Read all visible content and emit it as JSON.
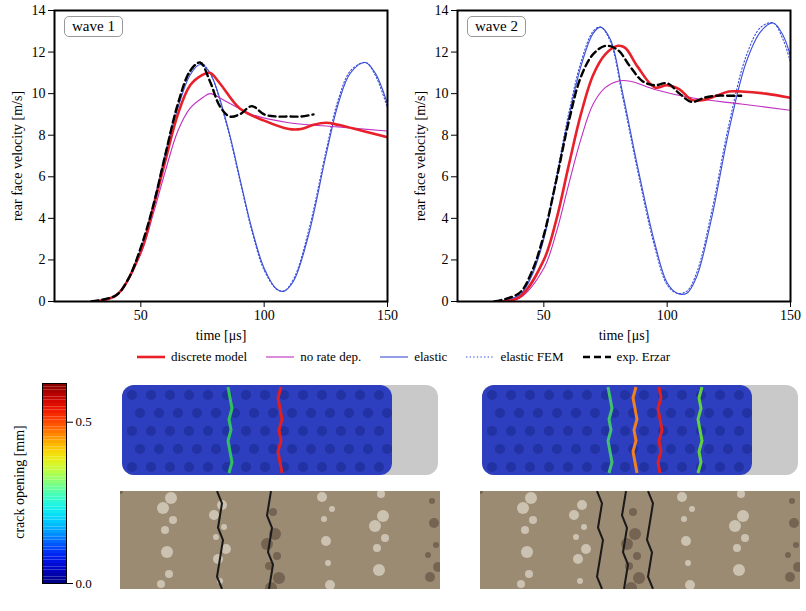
{
  "chart_data": [
    {
      "type": "line",
      "title": "wave 1",
      "x_label": "time [μs]",
      "y_label": "rear face velocity [m/s]",
      "xlim": [
        15,
        150
      ],
      "xticks": [
        50,
        100,
        150
      ],
      "ylim": [
        0,
        14
      ],
      "yticks": [
        0,
        2,
        4,
        6,
        8,
        10,
        12,
        14
      ],
      "grid": false,
      "series": [
        {
          "name": "discrete model",
          "color": "#e8202a",
          "line_style": "solid",
          "x": [
            30,
            40,
            50,
            55,
            60,
            65,
            70,
            75,
            78,
            82,
            90,
            100,
            110,
            115,
            120,
            125,
            130,
            140,
            150
          ],
          "values": [
            0,
            0.3,
            2.4,
            4.5,
            6.8,
            9.0,
            10.4,
            10.9,
            11.0,
            10.5,
            9.3,
            8.7,
            8.3,
            8.3,
            8.5,
            8.6,
            8.5,
            8.2,
            7.9
          ]
        },
        {
          "name": "no rate dep.",
          "color": "#c02fc0",
          "line_style": "solid",
          "x": [
            30,
            40,
            50,
            55,
            60,
            65,
            70,
            75,
            78,
            85,
            95,
            110,
            130,
            150
          ],
          "values": [
            0,
            0.3,
            2.3,
            4.2,
            6.3,
            8.2,
            9.3,
            9.8,
            10.0,
            9.6,
            9.0,
            8.6,
            8.4,
            8.2
          ]
        },
        {
          "name": "elastic",
          "color": "#3b4fd8",
          "line_style": "solid",
          "x": [
            30,
            40,
            50,
            55,
            60,
            65,
            70,
            74,
            78,
            85,
            90,
            95,
            100,
            105,
            108,
            112,
            118,
            125,
            130,
            135,
            141,
            145,
            150
          ],
          "values": [
            0,
            0.3,
            2.5,
            4.5,
            7.0,
            9.3,
            10.9,
            11.4,
            11.0,
            8.5,
            6.0,
            3.5,
            1.6,
            0.6,
            0.5,
            1.0,
            3.2,
            7.0,
            9.5,
            11.0,
            11.5,
            11.0,
            9.5
          ]
        },
        {
          "name": "elastic FEM",
          "color": "#3b4fd8",
          "line_style": "dotted",
          "x": [
            30,
            40,
            50,
            55,
            60,
            65,
            70,
            74,
            78,
            85,
            90,
            95,
            100,
            105,
            108,
            112,
            118,
            125,
            130,
            135,
            141,
            145,
            150
          ],
          "values": [
            0,
            0.3,
            2.6,
            4.7,
            7.2,
            9.5,
            11.0,
            11.5,
            11.0,
            8.4,
            5.9,
            3.4,
            1.5,
            0.6,
            0.5,
            1.1,
            3.4,
            7.2,
            9.7,
            11.1,
            11.5,
            10.9,
            9.3
          ]
        },
        {
          "name": "exp. Erzar",
          "color": "#000000",
          "line_style": "dashed",
          "x": [
            30,
            40,
            45,
            50,
            55,
            60,
            65,
            70,
            74,
            78,
            82,
            86,
            90,
            95,
            100,
            105,
            110,
            115,
            120
          ],
          "values": [
            0,
            0.3,
            1.1,
            2.6,
            4.6,
            7.1,
            9.5,
            11.1,
            11.5,
            10.6,
            9.4,
            8.9,
            9.0,
            9.4,
            9.0,
            8.9,
            8.9,
            8.9,
            9.0
          ]
        }
      ]
    },
    {
      "type": "line",
      "title": "wave 2",
      "x_label": "time [μs]",
      "y_label": "rear face velocity [m/s]",
      "xlim": [
        15,
        150
      ],
      "xticks": [
        50,
        100,
        150
      ],
      "ylim": [
        0,
        14
      ],
      "yticks": [
        0,
        2,
        4,
        6,
        8,
        10,
        12,
        14
      ],
      "grid": false,
      "legend": "bottom",
      "series": [
        {
          "name": "discrete model",
          "color": "#e8202a",
          "line_style": "solid",
          "x": [
            30,
            40,
            50,
            55,
            60,
            65,
            70,
            75,
            80,
            83,
            88,
            95,
            100,
            105,
            110,
            115,
            120,
            125,
            130,
            140,
            150
          ],
          "values": [
            0,
            0.2,
            2.0,
            3.9,
            6.5,
            9.0,
            10.9,
            11.9,
            12.3,
            12.2,
            11.3,
            10.3,
            10.4,
            10.2,
            9.7,
            9.7,
            9.9,
            10.1,
            10.1,
            10.0,
            9.8
          ]
        },
        {
          "name": "no rate dep.",
          "color": "#c02fc0",
          "line_style": "solid",
          "x": [
            30,
            40,
            50,
            55,
            60,
            65,
            70,
            75,
            80,
            85,
            95,
            110,
            130,
            150
          ],
          "values": [
            0,
            0.15,
            1.6,
            3.3,
            5.6,
            7.8,
            9.5,
            10.3,
            10.6,
            10.6,
            10.2,
            9.8,
            9.5,
            9.2
          ]
        },
        {
          "name": "elastic",
          "color": "#3b4fd8",
          "line_style": "solid",
          "x": [
            30,
            40,
            45,
            50,
            55,
            60,
            65,
            70,
            73,
            77,
            82,
            88,
            95,
            100,
            104,
            108,
            112,
            118,
            125,
            132,
            138,
            143,
            147,
            150
          ],
          "values": [
            0,
            0.3,
            1.2,
            3.0,
            5.8,
            8.8,
            11.3,
            12.9,
            13.2,
            12.6,
            10.0,
            6.5,
            2.8,
            0.9,
            0.4,
            0.4,
            1.2,
            4.0,
            8.2,
            11.5,
            13.0,
            13.4,
            12.8,
            11.8
          ]
        },
        {
          "name": "elastic FEM",
          "color": "#3b4fd8",
          "line_style": "dotted",
          "x": [
            30,
            40,
            45,
            50,
            55,
            60,
            65,
            70,
            73,
            77,
            82,
            88,
            95,
            100,
            104,
            108,
            112,
            118,
            125,
            132,
            138,
            143,
            147,
            150
          ],
          "values": [
            0,
            0.3,
            1.3,
            3.1,
            6.0,
            9.0,
            11.5,
            13.0,
            13.2,
            12.5,
            9.8,
            6.3,
            2.6,
            0.8,
            0.4,
            0.5,
            1.4,
            4.3,
            8.5,
            11.8,
            13.2,
            13.4,
            12.6,
            11.5
          ]
        },
        {
          "name": "exp. Erzar",
          "color": "#000000",
          "line_style": "dashed",
          "x": [
            30,
            40,
            45,
            50,
            55,
            60,
            65,
            70,
            75,
            80,
            85,
            90,
            95,
            100,
            105,
            110,
            115,
            120,
            125,
            130
          ],
          "values": [
            0,
            0.4,
            1.4,
            3.2,
            5.8,
            8.6,
            10.8,
            11.9,
            12.3,
            12.1,
            11.3,
            10.6,
            10.4,
            10.5,
            10.0,
            9.6,
            9.8,
            9.9,
            9.9,
            9.9
          ]
        }
      ]
    }
  ],
  "colorbar": {
    "label": "crack opening [mm]",
    "range": [
      0,
      0.62
    ],
    "ticks": [
      {
        "value": 0,
        "label": "0.0"
      },
      0.5
    ]
  }
}
